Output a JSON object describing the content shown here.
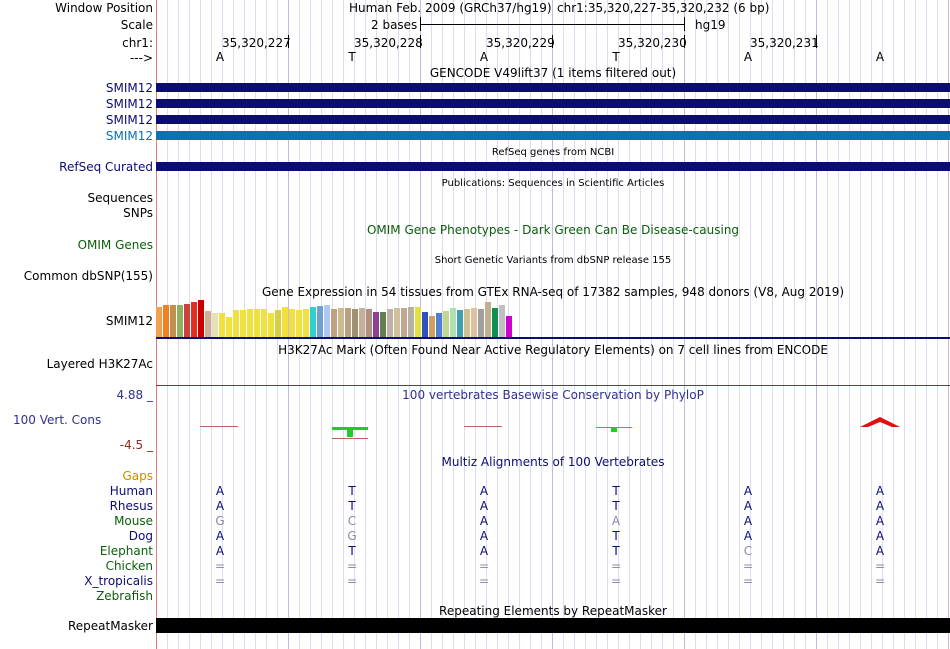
{
  "colors": {
    "navy": "#0c0c78",
    "gencode_bar": "#0c0c78",
    "gencode_selected": "#0a72b8",
    "refseq_bar": "#0c0c78",
    "omim_green": "#0b5e0b",
    "conservation_blue": "#303090",
    "conservation_neg": "#8b2c18",
    "gaps_orange": "#d08a00",
    "grid": "#dcdcf2",
    "repeat_bar": "#000000"
  },
  "header": {
    "window_position_label": "Window Position",
    "assembly": "Human Feb. 2009 (GRCh37/hg19)",
    "position": "chr1:35,320,227-35,320,232 (6 bp)",
    "scale_label": "Scale",
    "scale_value": "2 bases",
    "scale_db": "hg19",
    "chrom_label": "chr1:",
    "ticks": [
      "35,320,227",
      "35,320,228",
      "35,320,229",
      "35,320,230",
      "35,320,231"
    ],
    "strand_label": "--->",
    "bases": [
      "A",
      "T",
      "A",
      "T",
      "A",
      "A"
    ]
  },
  "tracks": {
    "gencode": {
      "title": "GENCODE V49lift37 (1 items filtered out)",
      "items": [
        "SMIM12",
        "SMIM12",
        "SMIM12",
        "SMIM12"
      ]
    },
    "refseq": {
      "title": "RefSeq genes from NCBI",
      "label": "RefSeq Curated"
    },
    "publications": {
      "title": "Publications: Sequences in Scientific Articles",
      "labels": [
        "Sequences",
        "SNPs"
      ]
    },
    "omim": {
      "title": "OMIM Gene Phenotypes - Dark Green Can Be Disease-causing",
      "label": "OMIM Genes"
    },
    "dbsnp": {
      "title": "Short Genetic Variants from dbSNP release 155",
      "label": "Common dbSNP(155)"
    },
    "gtex": {
      "title": "Gene Expression in 54 tissues from GTEx RNA-seq of 17382 samples, 948 donors (V8, Aug 2019)",
      "label": "SMIM12"
    },
    "h3k27ac": {
      "title": "H3K27Ac Mark (Often Found Near Active Regulatory Elements) on 7 cell lines from ENCODE",
      "label": "Layered H3K27Ac"
    },
    "phylop": {
      "title": "100 vertebrates Basewise Conservation by PhyloP",
      "label": "100 Vert. Cons",
      "max": "4.88 _",
      "min": "-4.5 _"
    },
    "multiz": {
      "title": "Multiz Alignments of 100 Vertebrates",
      "gaps_label": "Gaps",
      "species": [
        {
          "name": "Human",
          "bases": [
            "A",
            "T",
            "A",
            "T",
            "A",
            "A"
          ]
        },
        {
          "name": "Rhesus",
          "bases": [
            "A",
            "T",
            "A",
            "T",
            "A",
            "A"
          ]
        },
        {
          "name": "Mouse",
          "bases": [
            "G",
            "C",
            "A",
            "A",
            "A",
            "A"
          ]
        },
        {
          "name": "Dog",
          "bases": [
            "A",
            "G",
            "A",
            "T",
            "A",
            "A"
          ]
        },
        {
          "name": "Elephant",
          "bases": [
            "A",
            "T",
            "A",
            "T",
            "C",
            "A"
          ]
        },
        {
          "name": "Chicken",
          "bases": [
            "=",
            "=",
            "=",
            "=",
            "=",
            "="
          ]
        },
        {
          "name": "X_tropicalis",
          "bases": [
            "=",
            "=",
            "=",
            "=",
            "=",
            "="
          ]
        },
        {
          "name": "Zebrafish",
          "bases": [
            "",
            "",
            "",
            "",
            "",
            ""
          ]
        }
      ]
    },
    "repeatmasker": {
      "title": "Repeating Elements by RepeatMasker",
      "label": "RepeatMasker"
    }
  }
}
